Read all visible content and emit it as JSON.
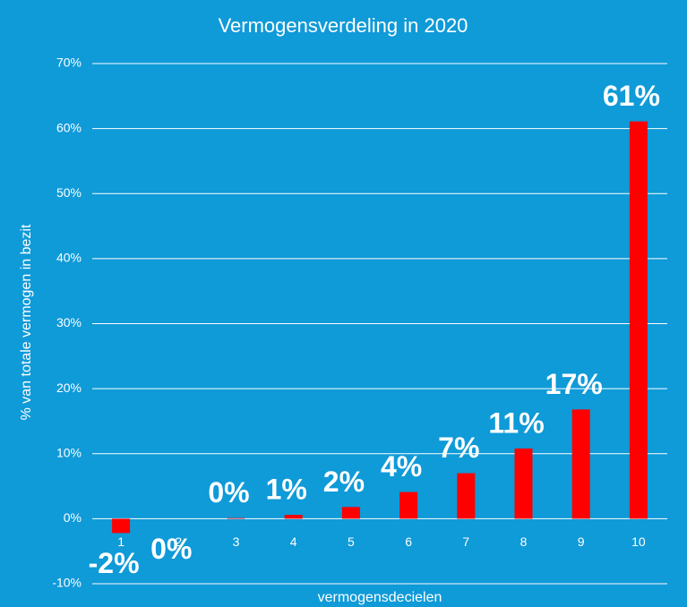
{
  "chart_data": {
    "type": "bar",
    "title": "Vermogensverdeling in 2020",
    "x_label": "vermogensdecielen",
    "y_label": "% van totale vermogen in bezit",
    "categories": [
      "1",
      "2",
      "3",
      "4",
      "5",
      "6",
      "7",
      "8",
      "9",
      "10"
    ],
    "values": [
      -2.2,
      0,
      0.1,
      0.6,
      1.8,
      4.1,
      7.0,
      10.8,
      16.8,
      61.1
    ],
    "value_labels": [
      "-2%",
      "0%",
      "0%",
      "1%",
      "2%",
      "4%",
      "7%",
      "11%",
      "17%",
      "61%"
    ],
    "color": "#ff0000",
    "ylim": [
      -10,
      70
    ],
    "yticks": [
      {
        "value": -10,
        "label": "-10%"
      },
      {
        "value": 0,
        "label": "0%"
      },
      {
        "value": 10,
        "label": "10%"
      },
      {
        "value": 20,
        "label": "20%"
      },
      {
        "value": 30,
        "label": "30%"
      },
      {
        "value": 40,
        "label": "40%"
      },
      {
        "value": 50,
        "label": "50%"
      },
      {
        "value": 60,
        "label": "60%"
      },
      {
        "value": 70,
        "label": "70%"
      }
    ],
    "grid": true
  }
}
